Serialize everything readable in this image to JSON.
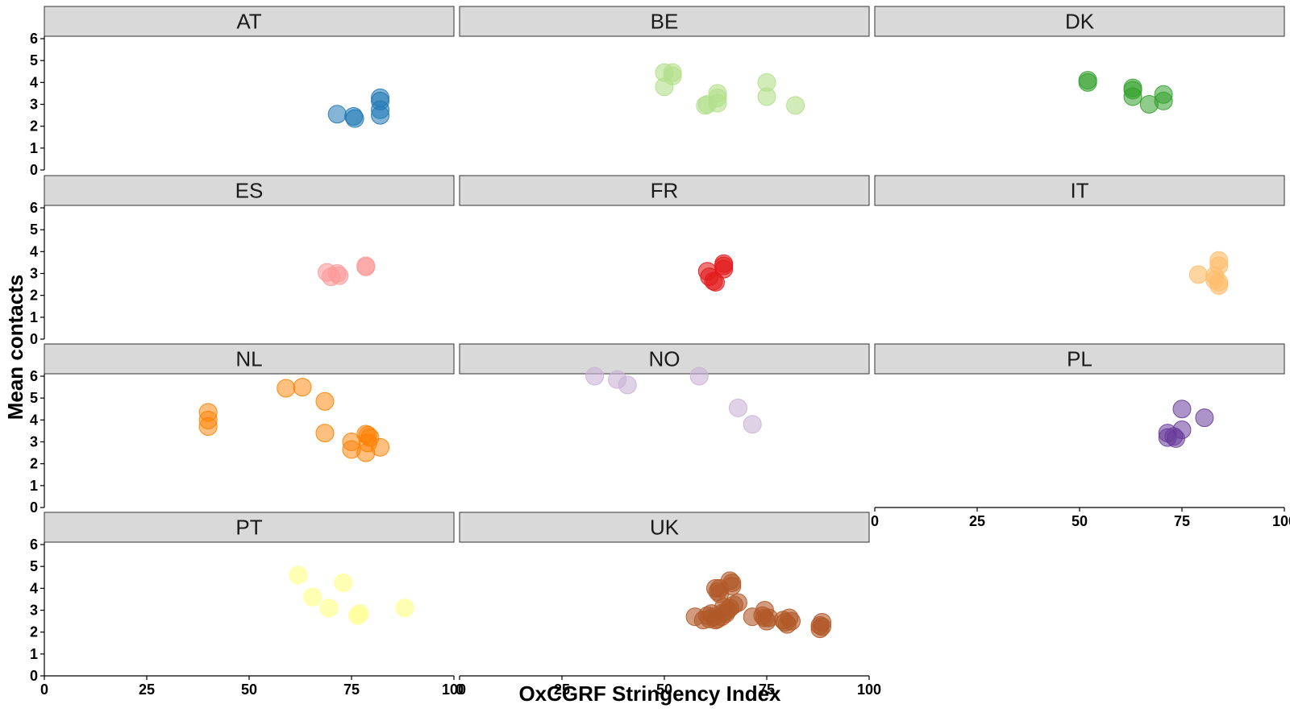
{
  "chart_data": {
    "type": "scatter",
    "xlabel": "OxCGRF Stringency Index",
    "ylabel": "Mean contacts",
    "xlim": [
      0,
      100
    ],
    "ylim": [
      0,
      6
    ],
    "x_ticks": [
      "0",
      "25",
      "50",
      "75",
      "100"
    ],
    "y_ticks": [
      "0",
      "1",
      "2",
      "3",
      "4",
      "5",
      "6"
    ],
    "grid": false,
    "legend": "none",
    "facets": [
      {
        "label": "AT",
        "color": "#1f78b4",
        "opacity": 0.55,
        "points": [
          [
            71.5,
            2.55
          ],
          [
            75.5,
            2.45
          ],
          [
            75.8,
            2.35
          ],
          [
            82,
            3.3
          ],
          [
            82,
            3.15
          ],
          [
            82,
            2.75
          ],
          [
            82,
            2.5
          ]
        ]
      },
      {
        "label": "BE",
        "color": "#b2df8a",
        "opacity": 0.6,
        "points": [
          [
            50,
            4.45
          ],
          [
            52,
            4.45
          ],
          [
            52,
            4.3
          ],
          [
            50,
            3.8
          ],
          [
            60.5,
            3.0
          ],
          [
            60,
            2.95
          ],
          [
            63,
            3.5
          ],
          [
            63,
            3.3
          ],
          [
            63,
            3.05
          ],
          [
            75,
            4.0
          ],
          [
            75,
            3.35
          ],
          [
            82,
            2.95
          ]
        ]
      },
      {
        "label": "DK",
        "color": "#33a02c",
        "opacity": 0.55,
        "points": [
          [
            52,
            4.1
          ],
          [
            52,
            4.0
          ],
          [
            63,
            3.75
          ],
          [
            63,
            3.65
          ],
          [
            63,
            3.35
          ],
          [
            67,
            3.0
          ],
          [
            70.5,
            3.45
          ],
          [
            70.5,
            3.15
          ]
        ]
      },
      {
        "label": "ES",
        "color": "#fb9a99",
        "opacity": 0.6,
        "points": [
          [
            69,
            3.05
          ],
          [
            70,
            2.85
          ],
          [
            71.5,
            3.0
          ],
          [
            72,
            2.9
          ],
          [
            78.5,
            3.35
          ],
          [
            78.5,
            3.3
          ]
        ]
      },
      {
        "label": "FR",
        "color": "#e31a1c",
        "opacity": 0.6,
        "points": [
          [
            60.5,
            3.1
          ],
          [
            61,
            2.85
          ],
          [
            62,
            2.65
          ],
          [
            62.5,
            2.6
          ],
          [
            64.5,
            3.45
          ],
          [
            64.5,
            3.35
          ],
          [
            64.5,
            3.2
          ]
        ]
      },
      {
        "label": "IT",
        "color": "#fdbf6f",
        "opacity": 0.65,
        "points": [
          [
            79,
            2.95
          ],
          [
            83,
            2.9
          ],
          [
            83,
            2.7
          ],
          [
            84,
            3.6
          ],
          [
            84,
            3.35
          ],
          [
            84,
            2.6
          ],
          [
            84,
            2.45
          ]
        ]
      },
      {
        "label": "NL",
        "color": "#ff7f00",
        "opacity": 0.5,
        "points": [
          [
            40,
            4.35
          ],
          [
            40,
            4.0
          ],
          [
            40,
            3.7
          ],
          [
            59,
            5.45
          ],
          [
            63,
            5.5
          ],
          [
            68.5,
            4.85
          ],
          [
            68.5,
            3.4
          ],
          [
            75,
            3.0
          ],
          [
            75,
            2.65
          ],
          [
            78.5,
            3.35
          ],
          [
            79,
            3.3
          ],
          [
            79.5,
            3.2
          ],
          [
            79,
            2.95
          ],
          [
            78.5,
            2.5
          ],
          [
            82,
            2.75
          ]
        ]
      },
      {
        "label": "NO",
        "color": "#cab2d6",
        "opacity": 0.6,
        "points": [
          [
            33,
            6.0
          ],
          [
            38.5,
            5.85
          ],
          [
            41,
            5.6
          ],
          [
            58.5,
            6.0
          ],
          [
            68,
            4.55
          ],
          [
            71.5,
            3.8
          ]
        ]
      },
      {
        "label": "PL",
        "color": "#6a3d9a",
        "opacity": 0.55,
        "points": [
          [
            71.5,
            3.4
          ],
          [
            71.5,
            3.2
          ],
          [
            73,
            3.25
          ],
          [
            73.5,
            3.15
          ],
          [
            75,
            4.5
          ],
          [
            75,
            3.55
          ],
          [
            80.5,
            4.1
          ]
        ]
      },
      {
        "label": "PT",
        "color": "#ffff99",
        "opacity": 0.75,
        "points": [
          [
            62,
            4.6
          ],
          [
            65.5,
            3.6
          ],
          [
            69.5,
            3.1
          ],
          [
            73,
            4.25
          ],
          [
            77,
            2.85
          ],
          [
            76.5,
            2.75
          ],
          [
            88,
            3.1
          ]
        ]
      },
      {
        "label": "UK",
        "color": "#b15928",
        "opacity": 0.6,
        "points": [
          [
            57.5,
            2.7
          ],
          [
            59.5,
            2.55
          ],
          [
            60.5,
            2.75
          ],
          [
            61,
            2.6
          ],
          [
            61.5,
            2.85
          ],
          [
            62,
            2.7
          ],
          [
            62.5,
            2.55
          ],
          [
            63,
            2.6
          ],
          [
            62.5,
            4.0
          ],
          [
            63,
            3.85
          ],
          [
            63.5,
            3.75
          ],
          [
            63.5,
            4.0
          ],
          [
            64,
            2.7
          ],
          [
            64.5,
            3.15
          ],
          [
            64.5,
            2.9
          ],
          [
            65,
            2.85
          ],
          [
            65.5,
            3.0
          ],
          [
            66,
            3.1
          ],
          [
            66,
            4.35
          ],
          [
            66.5,
            4.25
          ],
          [
            66.5,
            4.1
          ],
          [
            67,
            3.25
          ],
          [
            68,
            3.35
          ],
          [
            71.5,
            2.7
          ],
          [
            74,
            2.75
          ],
          [
            74.5,
            3.0
          ],
          [
            74.5,
            2.65
          ],
          [
            75,
            2.5
          ],
          [
            75.5,
            2.65
          ],
          [
            79,
            2.55
          ],
          [
            79.5,
            2.45
          ],
          [
            80,
            2.35
          ],
          [
            80.5,
            2.65
          ],
          [
            81,
            2.5
          ],
          [
            88,
            2.3
          ],
          [
            88,
            2.15
          ],
          [
            88.5,
            2.45
          ],
          [
            88.5,
            2.25
          ]
        ]
      }
    ]
  }
}
